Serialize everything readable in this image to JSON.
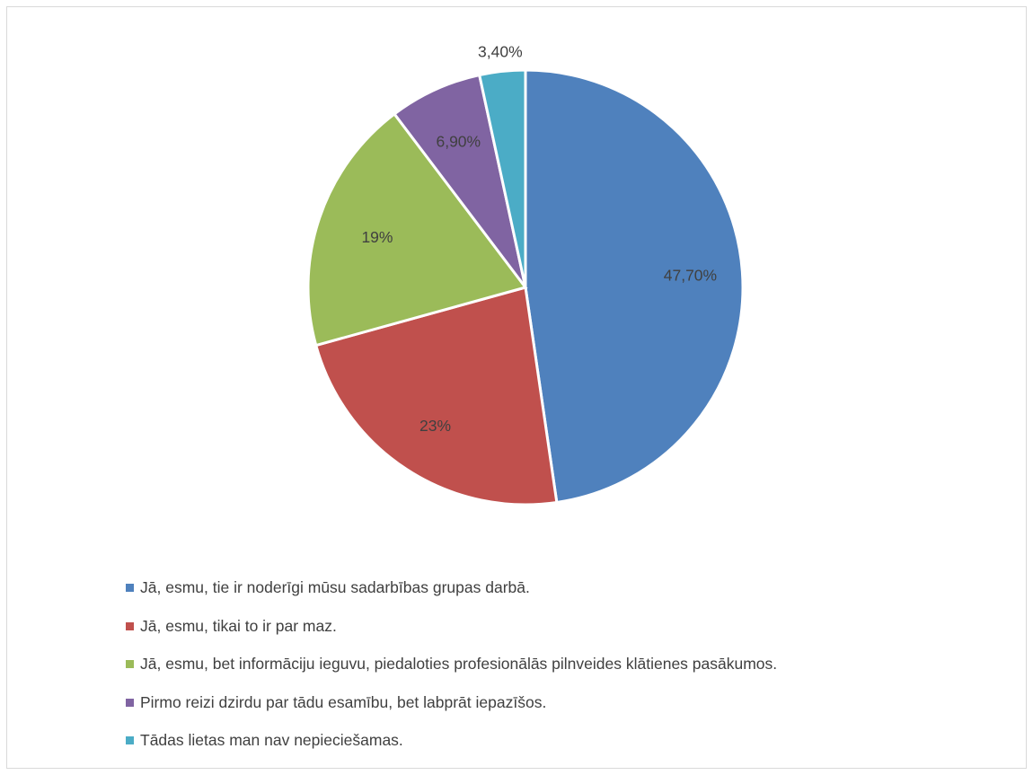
{
  "chart_data": {
    "type": "pie",
    "title": "",
    "slices": [
      {
        "label": "Jā, esmu, tie ir noderīgi mūsu sadarbības grupas darbā.",
        "value": 47.7,
        "display": "47,70%",
        "color": "#4f81bd"
      },
      {
        "label": "Jā, esmu, tikai to ir par maz.",
        "value": 23,
        "display": "23%",
        "color": "#c0504d"
      },
      {
        "label": "Jā, esmu, bet informāciju ieguvu, piedaloties profesionālās pilnveides klātienes pasākumos.",
        "value": 19,
        "display": "19%",
        "color": "#9bbb59"
      },
      {
        "label": "Pirmo reizi dzirdu par tādu esamību, bet labprāt iepazīšos.",
        "value": 6.9,
        "display": "6,90%",
        "color": "#8064a2"
      },
      {
        "label": "Tādas lietas man nav nepieciešamas.",
        "value": 3.4,
        "display": "3,40%",
        "color": "#4bacc6"
      }
    ],
    "legend_position": "bottom"
  }
}
